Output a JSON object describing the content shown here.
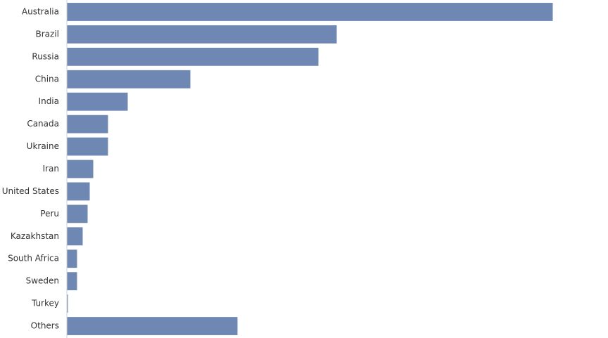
{
  "chart_data": {
    "type": "bar",
    "orientation": "horizontal",
    "categories": [
      "Australia",
      "Brazil",
      "Russia",
      "China",
      "India",
      "Canada",
      "Ukraine",
      "Iran",
      "United States",
      "Peru",
      "Kazakhstan",
      "South Africa",
      "Sweden",
      "Turkey",
      "Others"
    ],
    "values": [
      691,
      384,
      358,
      176,
      87,
      59,
      59,
      38,
      33,
      30,
      23,
      15,
      15,
      2,
      243
    ],
    "color": "#6f88b3"
  }
}
